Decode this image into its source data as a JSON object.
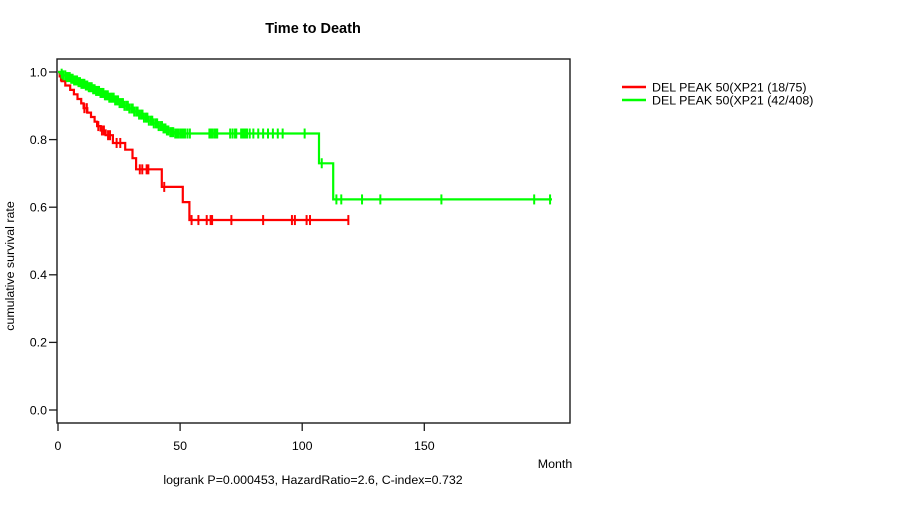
{
  "figure": {
    "background": "#ffffff",
    "border_color": "#1a1a1a",
    "text_color": "#000000"
  },
  "chart_data": {
    "type": "line",
    "subtype": "kaplan-meier-step-curve",
    "title": "Time to Death",
    "xlabel": "Month",
    "ylabel": "cumulative survival rate",
    "footer": "logrank P=0.000453, HazardRatio=2.6, C-index=0.732",
    "grid": false,
    "legend_position": "right-outside",
    "xlim": [
      0,
      210
    ],
    "ylim": [
      0,
      1
    ],
    "xticks": {
      "values": [
        0,
        50,
        100,
        150
      ],
      "labels": [
        "0",
        "50",
        "100",
        "150"
      ]
    },
    "yticks": {
      "values": [
        0,
        0.2,
        0.4,
        0.6,
        0.8,
        1.0
      ],
      "labels": [
        "0.0",
        "0.2",
        "0.4",
        "0.6",
        "0.8",
        "1.0"
      ]
    },
    "series": [
      {
        "name": "DEL PEAK 50(XP21 (18/75)",
        "color": "#ff0000",
        "steps": [
          [
            0,
            1.0
          ],
          [
            0.7,
            0.987
          ],
          [
            1.5,
            0.973
          ],
          [
            3,
            0.96
          ],
          [
            5,
            0.947
          ],
          [
            6.5,
            0.934
          ],
          [
            8,
            0.92
          ],
          [
            9.5,
            0.907
          ],
          [
            10.5,
            0.893
          ],
          [
            12,
            0.88
          ],
          [
            13.5,
            0.867
          ],
          [
            15,
            0.853
          ],
          [
            16,
            0.84
          ],
          [
            17.5,
            0.827
          ],
          [
            19.5,
            0.813
          ],
          [
            22.5,
            0.79
          ],
          [
            27.5,
            0.77
          ],
          [
            30.5,
            0.745
          ],
          [
            32,
            0.712
          ],
          [
            42.5,
            0.66
          ],
          [
            51.1,
            0.615
          ],
          [
            53.8,
            0.562
          ]
        ],
        "end_month": 118.9,
        "censor_months": [
          1.2,
          10.8,
          11.8,
          16.5,
          18,
          18.8,
          20.5,
          21.3,
          24,
          25.5,
          33.5,
          34.5,
          36.3,
          37,
          43.5,
          54.7,
          57.5,
          60.9,
          62.5,
          63.1,
          71,
          84,
          95.8,
          97,
          101.8,
          103.2,
          118.9
        ]
      },
      {
        "name": "DEL PEAK 50(XP21 (42/408)",
        "color": "#00ff00",
        "steps": [
          [
            0,
            1.0
          ],
          [
            1,
            0.995
          ],
          [
            2,
            0.99
          ],
          [
            3.5,
            0.985
          ],
          [
            5,
            0.98
          ],
          [
            6.5,
            0.975
          ],
          [
            8,
            0.97
          ],
          [
            9.5,
            0.965
          ],
          [
            11,
            0.96
          ],
          [
            12.5,
            0.955
          ],
          [
            14,
            0.949
          ],
          [
            15.5,
            0.944
          ],
          [
            17,
            0.938
          ],
          [
            19,
            0.931
          ],
          [
            21,
            0.924
          ],
          [
            23,
            0.916
          ],
          [
            25,
            0.908
          ],
          [
            27,
            0.9
          ],
          [
            29,
            0.892
          ],
          [
            31,
            0.883
          ],
          [
            33,
            0.874
          ],
          [
            35,
            0.865
          ],
          [
            37,
            0.856
          ],
          [
            39,
            0.848
          ],
          [
            41,
            0.84
          ],
          [
            43,
            0.833
          ],
          [
            44.5,
            0.827
          ],
          [
            46,
            0.822
          ],
          [
            47.5,
            0.818
          ],
          [
            106.9,
            0.73
          ],
          [
            112.7,
            0.623
          ]
        ],
        "end_month": 202.3,
        "censor_months": [
          1.5,
          2.2,
          3,
          3.6,
          4.2,
          4.8,
          5.4,
          6,
          6.6,
          7.2,
          7.8,
          8.4,
          9,
          9.6,
          10.2,
          10.8,
          11.4,
          12,
          12.6,
          13.2,
          13.8,
          14.4,
          15,
          15.6,
          16.2,
          16.8,
          17.4,
          18,
          18.6,
          19.2,
          19.8,
          20.4,
          21,
          21.6,
          22.2,
          22.8,
          23.4,
          24,
          24.6,
          25.2,
          26,
          26.6,
          27.2,
          28,
          28.6,
          29.2,
          30,
          30.6,
          31.2,
          32,
          32.6,
          33.2,
          34,
          34.6,
          35.2,
          36,
          36.6,
          37.2,
          38,
          38.6,
          39.2,
          40,
          40.6,
          41.2,
          42,
          42.6,
          43.2,
          44,
          44.6,
          45.2,
          46,
          46.6,
          47.2,
          48,
          48.6,
          49.2,
          50,
          50.6,
          51.2,
          52,
          53,
          54,
          62,
          62.6,
          63.2,
          64,
          64.6,
          65.2,
          70.5,
          71.5,
          72.5,
          73,
          75,
          75.4,
          75.8,
          76.2,
          76.6,
          77,
          77.4,
          78.5,
          80,
          82,
          84,
          86,
          88,
          90,
          92,
          101,
          108,
          114,
          116,
          124.5,
          132,
          157,
          195,
          201.5
        ]
      }
    ]
  }
}
